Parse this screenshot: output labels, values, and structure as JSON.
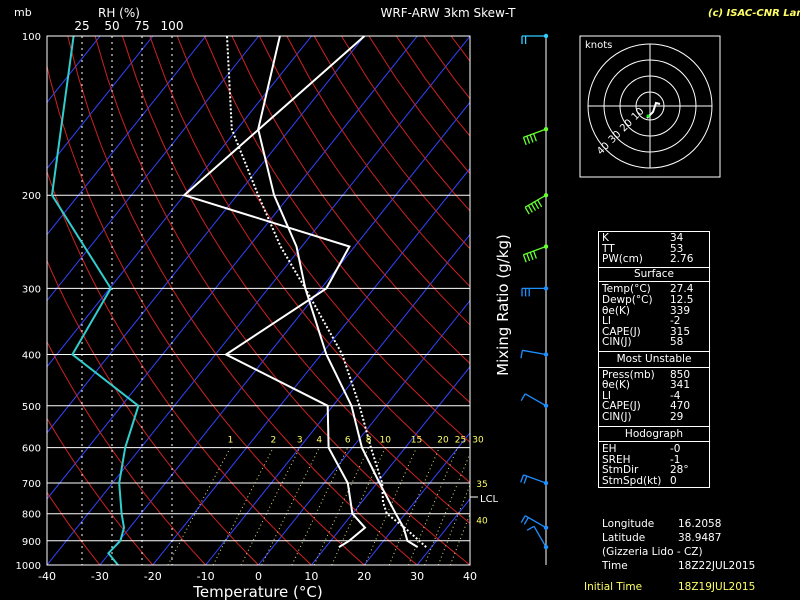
{
  "title": "WRF-ARW 3km Skew-T",
  "credit": "(c) ISAC-CNR Lamezia",
  "pressure_unit": "mb",
  "rh_label": "RH (%)",
  "rh_ticks": [
    "25",
    "50",
    "75",
    "100"
  ],
  "mixing_ratio_label": "Mixing Ratio (g/kg)",
  "mixing_ratio_ticks": [
    "1",
    "2",
    "3",
    "4",
    "6",
    "8",
    "10",
    "15",
    "20",
    "25",
    "30",
    "35",
    "40"
  ],
  "lcl_label": "LCL",
  "hodograph": {
    "unit": "knots",
    "ring_labels": [
      "10",
      "20",
      "30",
      "40"
    ]
  },
  "chart_data": {
    "type": "line",
    "title": "WRF-ARW 3km Skew-T",
    "xlabel": "Temperature (°C)",
    "ylabel": "mb",
    "xlim": [
      -40,
      40
    ],
    "ylim": [
      1000,
      100
    ],
    "x_ticks": [
      "-40",
      "-30",
      "-20",
      "-10",
      "0",
      "10",
      "20",
      "30",
      "40"
    ],
    "y_ticks": [
      "100",
      "200",
      "300",
      "400",
      "500",
      "600",
      "700",
      "800",
      "900",
      "1000"
    ],
    "series": [
      {
        "name": "Temp",
        "points": [
          [
            925,
            27.4
          ],
          [
            900,
            24.5
          ],
          [
            850,
            21.8
          ],
          [
            800,
            18.2
          ],
          [
            700,
            10.5
          ],
          [
            600,
            1.8
          ],
          [
            500,
            -6.5
          ],
          [
            400,
            -19
          ],
          [
            300,
            -33
          ],
          [
            250,
            -41
          ],
          [
            200,
            -53
          ],
          [
            150,
            -66
          ],
          [
            100,
            -76
          ]
        ]
      },
      {
        "name": "Dewp",
        "points": [
          [
            925,
            12.5
          ],
          [
            900,
            13.5
          ],
          [
            850,
            14.5
          ],
          [
            800,
            10
          ],
          [
            700,
            4.5
          ],
          [
            600,
            -4.5
          ],
          [
            500,
            -11
          ],
          [
            400,
            -38
          ],
          [
            300,
            -29
          ],
          [
            250,
            -31
          ],
          [
            200,
            -70
          ],
          [
            100,
            -60
          ]
        ]
      },
      {
        "name": "Parcel",
        "points": [
          [
            925,
            29
          ],
          [
            850,
            22
          ],
          [
            800,
            16.5
          ],
          [
            760,
            14
          ],
          [
            700,
            11
          ],
          [
            600,
            3.5
          ],
          [
            500,
            -5
          ],
          [
            400,
            -16
          ],
          [
            300,
            -33
          ],
          [
            250,
            -44
          ],
          [
            200,
            -56
          ],
          [
            150,
            -71
          ],
          [
            100,
            -86
          ]
        ]
      },
      {
        "name": "RH",
        "points": [
          [
            1000,
            55
          ],
          [
            950,
            47
          ],
          [
            900,
            57
          ],
          [
            850,
            60
          ],
          [
            800,
            58
          ],
          [
            700,
            56
          ],
          [
            600,
            61
          ],
          [
            500,
            72
          ],
          [
            400,
            17
          ],
          [
            300,
            49
          ],
          [
            200,
            0
          ],
          [
            100,
            18
          ]
        ]
      }
    ],
    "wind_barbs": [
      {
        "p": 100,
        "dir": 270,
        "spd": 20
      },
      {
        "p": 150,
        "dir": 250,
        "spd": 35
      },
      {
        "p": 200,
        "dir": 240,
        "spd": 50
      },
      {
        "p": 250,
        "dir": 250,
        "spd": 35
      },
      {
        "p": 300,
        "dir": 270,
        "spd": 25
      },
      {
        "p": 400,
        "dir": 280,
        "spd": 10
      },
      {
        "p": 500,
        "dir": 300,
        "spd": 10
      },
      {
        "p": 700,
        "dir": 290,
        "spd": 15
      },
      {
        "p": 850,
        "dir": 300,
        "spd": 15
      },
      {
        "p": 925,
        "dir": 330,
        "spd": 10
      }
    ]
  },
  "indices": {
    "header": [
      {
        "k": "K",
        "v": "34"
      },
      {
        "k": "TT",
        "v": "53"
      },
      {
        "k": "PW(cm)",
        "v": "2.76"
      }
    ],
    "surface": {
      "title": "Surface",
      "rows": [
        {
          "k": "Temp(°C)",
          "v": "27.4"
        },
        {
          "k": "Dewp(°C)",
          "v": "12.5"
        },
        {
          "k": "θe(K)",
          "v": "339"
        },
        {
          "k": "LI",
          "v": "-2"
        },
        {
          "k": "CAPE(J)",
          "v": "315"
        },
        {
          "k": "CIN(J)",
          "v": "58"
        }
      ]
    },
    "unstable": {
      "title": "Most Unstable",
      "rows": [
        {
          "k": "Press(mb)",
          "v": "850"
        },
        {
          "k": "θe(K)",
          "v": "341"
        },
        {
          "k": "LI",
          "v": "-4"
        },
        {
          "k": "CAPE(J)",
          "v": "470"
        },
        {
          "k": "CIN(J)",
          "v": "29"
        }
      ]
    },
    "hodo": {
      "title": "Hodograph",
      "rows": [
        {
          "k": "EH",
          "v": "-0"
        },
        {
          "k": "SREH",
          "v": "-1"
        },
        {
          "k": "StmDir",
          "v": "28°"
        },
        {
          "k": "StmSpd(kt)",
          "v": "0"
        }
      ]
    }
  },
  "station": {
    "rows": [
      {
        "k": "Longitude",
        "v": "16.2058"
      },
      {
        "k": "Latitude",
        "v": "38.9487"
      },
      {
        "k": "(Gizzeria Lido - CZ)",
        "v": ""
      },
      {
        "k": "Time",
        "v": "18Z22JUL2015"
      }
    ]
  },
  "initial_time": {
    "label": "Initial Time",
    "value": "18Z19JUL2015"
  },
  "colors": {
    "temp": "#ffffff",
    "rh": "#33cccc",
    "isotherm": "#3344ff",
    "dry_adiabat": "#cc2222",
    "mixing": "#ffff66",
    "wind": "#1e90ff",
    "hodo_pt": "#00ff00"
  }
}
